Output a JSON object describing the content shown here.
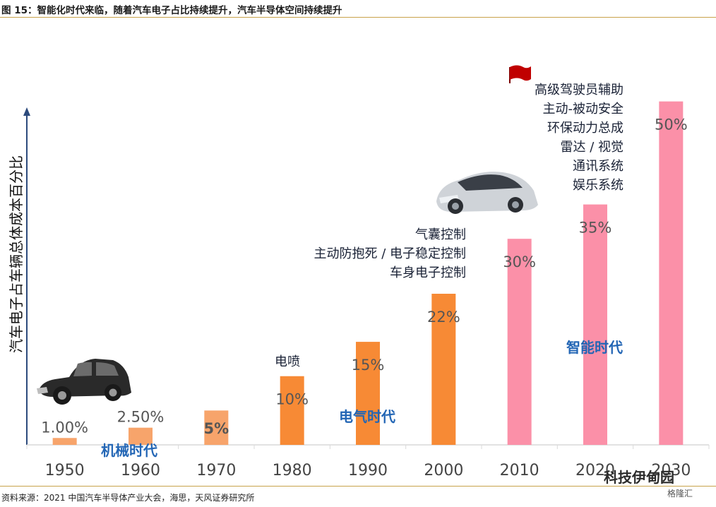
{
  "header": {
    "title": "图 15：智能化时代来临，随着汽车电子占比持续提升，汽车半导体空间持续提升"
  },
  "footer": {
    "source": "资料来源：2021 中国汽车半导体产业大会，海思，天风证券研究所"
  },
  "watermark": {
    "main": "科技伊甸园",
    "sub": "格隆汇"
  },
  "chart_data": {
    "type": "bar",
    "ylabel": "汽车电子占车辆总体成本百分比",
    "categories": [
      "1950",
      "1960",
      "1970",
      "1980",
      "1990",
      "2000",
      "2010",
      "2020",
      "2030"
    ],
    "values": [
      1,
      2.5,
      5,
      10,
      15,
      22,
      30,
      35,
      50
    ],
    "value_labels": [
      "1.00%",
      "2.50%",
      "5%",
      "10%",
      "15%",
      "22%",
      "30%",
      "35%",
      "50%"
    ],
    "ylim": [
      0,
      55
    ],
    "grid": false,
    "colors": [
      "#f7a46b",
      "#f7a46b",
      "#f7a46b",
      "#f78a35",
      "#f78a35",
      "#f78a35",
      "#fb90a8",
      "#fb90a8",
      "#fb90a8"
    ],
    "eras": [
      {
        "label": "机械时代",
        "color": "#2366b5"
      },
      {
        "label": "电气时代",
        "color": "#2366b5"
      },
      {
        "label": "智能时代",
        "color": "#2366b5"
      }
    ],
    "annotations": [
      {
        "group": "electric",
        "lines": [
          "电喷"
        ]
      },
      {
        "group": "electric2",
        "lines": [
          "气囊控制",
          "主动防抱死 / 电子稳定控制",
          "车身电子控制"
        ]
      },
      {
        "group": "smart",
        "lines": [
          "高级驾驶员辅助",
          "主动-被动安全",
          "环保动力总成",
          "雷达 / 视觉",
          "通讯系统",
          "娱乐系统"
        ]
      }
    ],
    "icons": [
      "vintage-car-icon",
      "modern-car-icon",
      "red-flag-icon"
    ]
  }
}
